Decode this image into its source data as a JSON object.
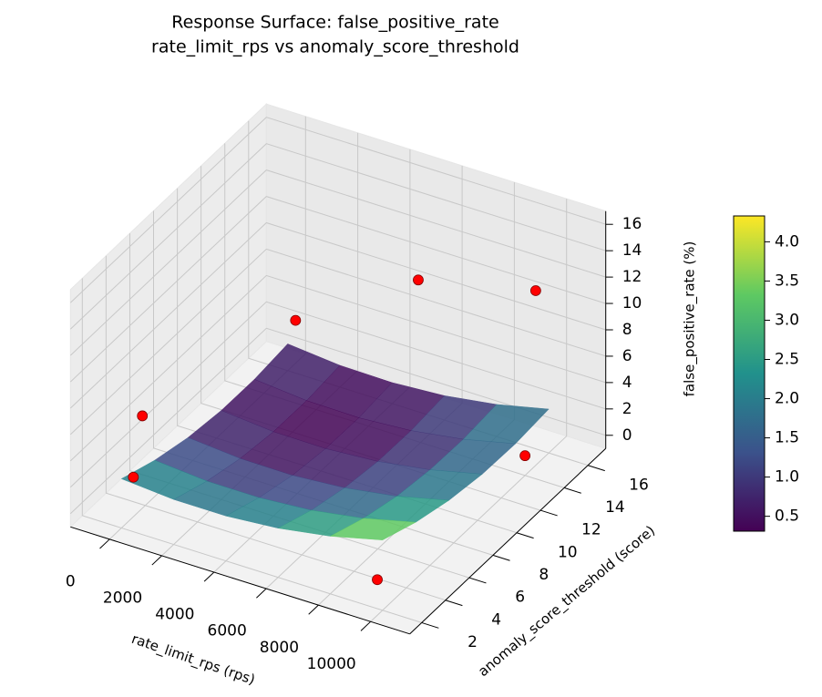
{
  "chart_data": {
    "type": "surface3d",
    "title": "Response Surface: false_positive_rate",
    "subtitle": "rate_limit_rps vs anomaly_score_threshold",
    "x_label": "rate_limit_rps (rps)",
    "y_label": "anomaly_score_threshold (score)",
    "z_label": "false_positive_rate (%)",
    "xlim": [
      -1500,
      11500
    ],
    "ylim": [
      1,
      17.5
    ],
    "zlim": [
      -1,
      17
    ],
    "xticks": [
      0,
      2000,
      4000,
      6000,
      8000,
      10000
    ],
    "yticks": [
      2,
      4,
      6,
      8,
      10,
      12,
      14,
      16
    ],
    "zticks": [
      0,
      2,
      4,
      6,
      8,
      10,
      12,
      14,
      16
    ],
    "grid": true,
    "surface": {
      "x": [
        0,
        2000,
        4000,
        6000,
        8000,
        10000
      ],
      "y": [
        2,
        4.8,
        7.6,
        10.4,
        13.2,
        16
      ],
      "z": [
        [
          2.73,
          2.41,
          2.41,
          2.73,
          3.37,
          4.33
        ],
        [
          1.75,
          1.42,
          1.41,
          1.71,
          2.34,
          3.29
        ],
        [
          1.09,
          0.75,
          0.72,
          1.02,
          1.63,
          2.57
        ],
        [
          0.75,
          0.39,
          0.36,
          0.64,
          1.25,
          2.17
        ],
        [
          0.73,
          0.36,
          0.31,
          0.59,
          1.18,
          2.09
        ],
        [
          1.03,
          0.65,
          0.59,
          0.85,
          1.43,
          2.33
        ]
      ],
      "colormap": "viridis",
      "opacity": 0.85
    },
    "points": {
      "color": "#ff0000",
      "x": [
        800,
        300,
        5000,
        9500,
        10000,
        9800,
        0
      ],
      "y": [
        2,
        16,
        16,
        16,
        14,
        2,
        3
      ],
      "z": [
        8,
        3,
        9,
        11,
        0.5,
        1.2,
        2
      ]
    },
    "colorbar": {
      "lim": [
        0.31,
        4.33
      ],
      "ticks": [
        {
          "value": 0.5,
          "label": "0.5"
        },
        {
          "value": 1.0,
          "label": "1.0"
        },
        {
          "value": 1.5,
          "label": "1.5"
        },
        {
          "value": 2.0,
          "label": "2.0"
        },
        {
          "value": 2.5,
          "label": "2.5"
        },
        {
          "value": 3.0,
          "label": "3.0"
        },
        {
          "value": 3.5,
          "label": "3.5"
        },
        {
          "value": 4.0,
          "label": "4.0"
        }
      ]
    }
  }
}
